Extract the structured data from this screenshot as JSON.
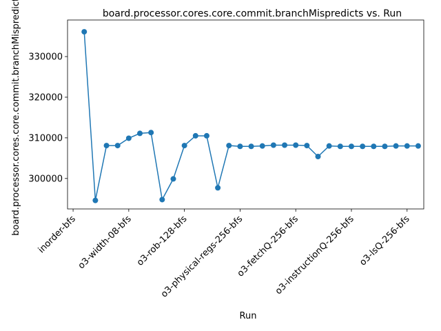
{
  "chart_data": {
    "type": "line",
    "title": "board.processor.cores.core.commit.branchMispredicts vs. Run",
    "xlabel": "Run",
    "ylabel": "board.processor.cores.core.commit.branchMispredicts",
    "color": "#1f77b4",
    "marker": "circle",
    "grid": false,
    "legend": "none",
    "ylim": [
      292500,
      339000
    ],
    "yticks": [
      300000,
      310000,
      320000,
      330000
    ],
    "ytick_labels": [
      "300000",
      "310000",
      "320000",
      "330000"
    ],
    "xlim": [
      -1.5,
      30.5
    ],
    "xticks": [
      -1,
      4,
      9,
      14,
      19,
      24,
      29
    ],
    "xtick_labels": [
      "inorder-bfs",
      "o3-width-08-bfs",
      "o3-rob-128-bfs",
      "o3-physical-regs-256-bfs",
      "o3-fetchQ-256-bfs",
      "o3-instructionQ-256-bfs",
      "o3-lsQ-256-bfs"
    ],
    "x": [
      0,
      1,
      2,
      3,
      4,
      5,
      6,
      7,
      8,
      9,
      10,
      11,
      12,
      13,
      14,
      15,
      16,
      17,
      18,
      19,
      20,
      21,
      22,
      23,
      24,
      25,
      26,
      27,
      28,
      29,
      30
    ],
    "values": [
      336100,
      294600,
      308100,
      308100,
      309900,
      311100,
      311300,
      294800,
      299900,
      308100,
      310500,
      310500,
      297700,
      308100,
      307900,
      307900,
      308000,
      308200,
      308200,
      308200,
      308100,
      305400,
      308000,
      307900,
      307900,
      307900,
      307900,
      307900,
      308000,
      308000,
      308000
    ]
  }
}
